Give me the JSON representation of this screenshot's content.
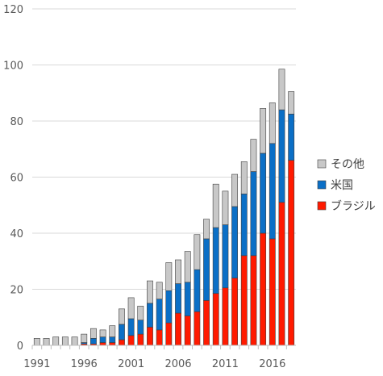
{
  "chart_data": {
    "type": "bar",
    "stacked": true,
    "title": "",
    "xlabel": "",
    "ylabel": "",
    "ylim": [
      0,
      120
    ],
    "yticks": [
      0,
      20,
      40,
      60,
      80,
      100,
      120
    ],
    "grid": "horizontal",
    "legend_position": "right",
    "categories": [
      "1991",
      "1992",
      "1993",
      "1994",
      "1995",
      "1996",
      "1997",
      "1998",
      "1999",
      "2000",
      "2001",
      "2002",
      "2003",
      "2004",
      "2005",
      "2006",
      "2007",
      "2008",
      "2009",
      "2010",
      "2011",
      "2012",
      "2013",
      "2014",
      "2015",
      "2016",
      "2017",
      "2018"
    ],
    "x_tick_labels": [
      "1991",
      "1996",
      "2001",
      "2006",
      "2011",
      "2016"
    ],
    "series": [
      {
        "name": "ブラジル",
        "color": "#ff1a00",
        "values": [
          0,
          0,
          0,
          0,
          0,
          0.5,
          0.5,
          1,
          1,
          2,
          3.5,
          4,
          6.5,
          5.5,
          8,
          11.5,
          10.5,
          12,
          16,
          18.5,
          20.5,
          24,
          32,
          32,
          40,
          38,
          51,
          66
        ]
      },
      {
        "name": "米国",
        "color": "#0b6fc6",
        "values": [
          0,
          0,
          0,
          0,
          0,
          0.5,
          2,
          2,
          2,
          5.5,
          6,
          5,
          8.5,
          11,
          11.5,
          10.5,
          12,
          15,
          22,
          23.5,
          22.5,
          25.5,
          22,
          30,
          28.5,
          34,
          33,
          16.5
        ]
      },
      {
        "name": "その他",
        "color": "#c8c8c8",
        "values": [
          2.5,
          2.5,
          3,
          3,
          3,
          3,
          3.5,
          2.5,
          4,
          5.5,
          7.5,
          5,
          8,
          6,
          10,
          8.5,
          11,
          12.5,
          7,
          15.5,
          12,
          11.5,
          11.5,
          11.5,
          16,
          14.5,
          14.5,
          8
        ]
      }
    ]
  }
}
